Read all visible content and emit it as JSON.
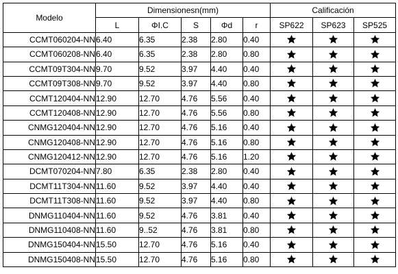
{
  "header": {
    "model": "Modelo",
    "dimensions_group": "Dimensionesn(mm)",
    "rating_group": "Calificación",
    "dim_columns": [
      "L",
      "ΦI.C",
      "S",
      "Φd",
      "r"
    ],
    "rating_columns": [
      "SP622",
      "SP623",
      "SP525"
    ]
  },
  "icon": "star-icon",
  "rows": [
    {
      "model": "CCMT060204-NN",
      "L": "6.40",
      "IC": "6.35",
      "S": "2.38",
      "d": "2.80",
      "r": "0.40"
    },
    {
      "model": "CCMT060208-NN",
      "L": "6.40",
      "IC": "6.35",
      "S": "2.38",
      "d": "2.80",
      "r": "0.80"
    },
    {
      "model": "CCMT09T304-NN",
      "L": "9.70",
      "IC": "9.52",
      "S": "3.97",
      "d": "4.40",
      "r": "0.40"
    },
    {
      "model": "CCMT09T308-NN",
      "L": "9.70",
      "IC": "9.52",
      "S": "3.97",
      "d": "4.40",
      "r": "0.80"
    },
    {
      "model": "CCMT120404-NN",
      "L": "12.90",
      "IC": "12.70",
      "S": "4.76",
      "d": "5.56",
      "r": "0.40"
    },
    {
      "model": "CCMT120408-NN",
      "L": "12.90",
      "IC": "12.70",
      "S": "4.76",
      "d": "5.56",
      "r": "0.80"
    },
    {
      "model": "CNMG120404-NN",
      "L": "12.90",
      "IC": "12.70",
      "S": "4.76",
      "d": "5.16",
      "r": "0.40"
    },
    {
      "model": "CNMG120408-NN",
      "L": "12.90",
      "IC": "12.70",
      "S": "4.76",
      "d": "5.16",
      "r": "0.80"
    },
    {
      "model": "CNMG120412-NN",
      "L": "12.90",
      "IC": "12.70",
      "S": "4.76",
      "d": "5.16",
      "r": "1.20"
    },
    {
      "model": "DCMT070204-NN",
      "L": "7.80",
      "IC": "6.35",
      "S": "2.38",
      "d": "2.80",
      "r": "0.40"
    },
    {
      "model": "DCMT11T304-NN",
      "L": "11.60",
      "IC": "9.52",
      "S": "3.97",
      "d": "4.40",
      "r": "0.40"
    },
    {
      "model": "DCMT11T308-NN",
      "L": "11.60",
      "IC": "9.52",
      "S": "3.97",
      "d": "4.40",
      "r": "0.80"
    },
    {
      "model": "DNMG110404-NN",
      "L": "11.60",
      "IC": "9.52",
      "S": "4.76",
      "d": "3.81",
      "r": "0.40"
    },
    {
      "model": "DNMG110408-NN",
      "L": "11.60",
      "IC": "9..52",
      "S": "4.76",
      "d": "3.81",
      "r": "0.80"
    },
    {
      "model": "DNMG150404-NN",
      "L": "15.50",
      "IC": "12.70",
      "S": "4.76",
      "d": "5.16",
      "r": "0.40"
    },
    {
      "model": "DNMG150408-NN",
      "L": "15.50",
      "IC": "12.70",
      "S": "4.76",
      "d": "5.16",
      "r": "0.80"
    }
  ]
}
